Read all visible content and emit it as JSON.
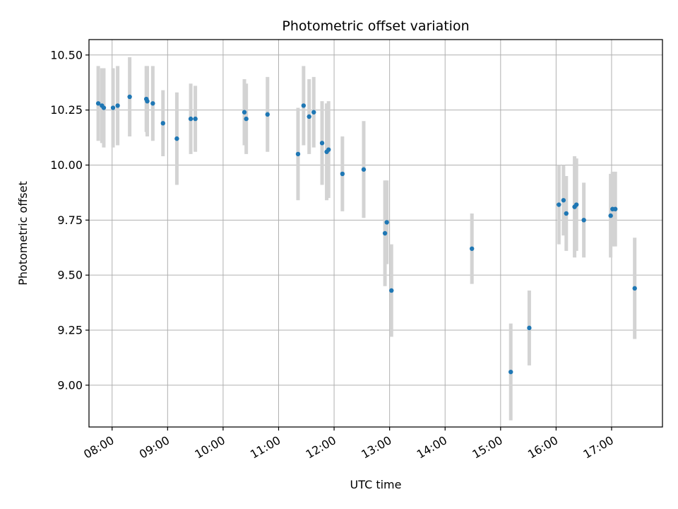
{
  "chart_data": {
    "type": "scatter",
    "title": "Photometric offset variation",
    "xlabel": "UTC time",
    "ylabel": "Photometric offset",
    "grid": true,
    "xlim": [
      "07:35",
      "17:55"
    ],
    "ylim": [
      8.81,
      10.57
    ],
    "x_ticks": [
      "08:00",
      "09:00",
      "10:00",
      "11:00",
      "12:00",
      "13:00",
      "14:00",
      "15:00",
      "16:00",
      "17:00"
    ],
    "y_ticks": [
      9.0,
      9.25,
      9.5,
      9.75,
      10.0,
      10.25,
      10.5
    ],
    "y_tick_labels": [
      "9.00",
      "9.25",
      "9.50",
      "9.75",
      "10.00",
      "10.25",
      "10.50"
    ],
    "colors": {
      "point": "#1f77b4",
      "errorbar": "#d3d3d3",
      "grid": "#b0b0b0",
      "axis": "#000000"
    },
    "series": [
      {
        "x": [
          "07:45",
          "07:49",
          "07:51",
          "08:01",
          "08:06",
          "08:19",
          "08:37",
          "08:38",
          "08:44",
          "08:55",
          "09:10",
          "09:25",
          "09:30",
          "10:23",
          "10:25",
          "10:48",
          "11:21",
          "11:27",
          "11:33",
          "11:38",
          "11:47",
          "11:52",
          "11:54",
          "12:09",
          "12:32",
          "12:55",
          "12:57",
          "13:02",
          "14:29",
          "15:11",
          "15:31",
          "16:03",
          "16:08",
          "16:11",
          "16:20",
          "16:22",
          "16:30",
          "16:59",
          "17:01",
          "17:04",
          "17:25"
        ],
        "y": [
          10.28,
          10.27,
          10.26,
          10.26,
          10.27,
          10.31,
          10.3,
          10.29,
          10.28,
          10.19,
          10.12,
          10.21,
          10.21,
          10.24,
          10.21,
          10.23,
          10.05,
          10.27,
          10.22,
          10.24,
          10.1,
          10.06,
          10.07,
          9.96,
          9.98,
          9.69,
          9.74,
          9.43,
          9.62,
          9.06,
          9.26,
          9.82,
          9.84,
          9.78,
          9.81,
          9.82,
          9.75,
          9.77,
          9.8,
          9.8,
          9.44
        ],
        "yerr": [
          0.17,
          0.17,
          0.18,
          0.18,
          0.18,
          0.18,
          0.15,
          0.16,
          0.17,
          0.15,
          0.21,
          0.16,
          0.15,
          0.15,
          0.16,
          0.17,
          0.21,
          0.18,
          0.17,
          0.16,
          0.19,
          0.22,
          0.22,
          0.17,
          0.22,
          0.24,
          0.19,
          0.21,
          0.16,
          0.22,
          0.17,
          0.18,
          0.16,
          0.17,
          0.23,
          0.21,
          0.17,
          0.19,
          0.17,
          0.17,
          0.23
        ]
      }
    ]
  }
}
